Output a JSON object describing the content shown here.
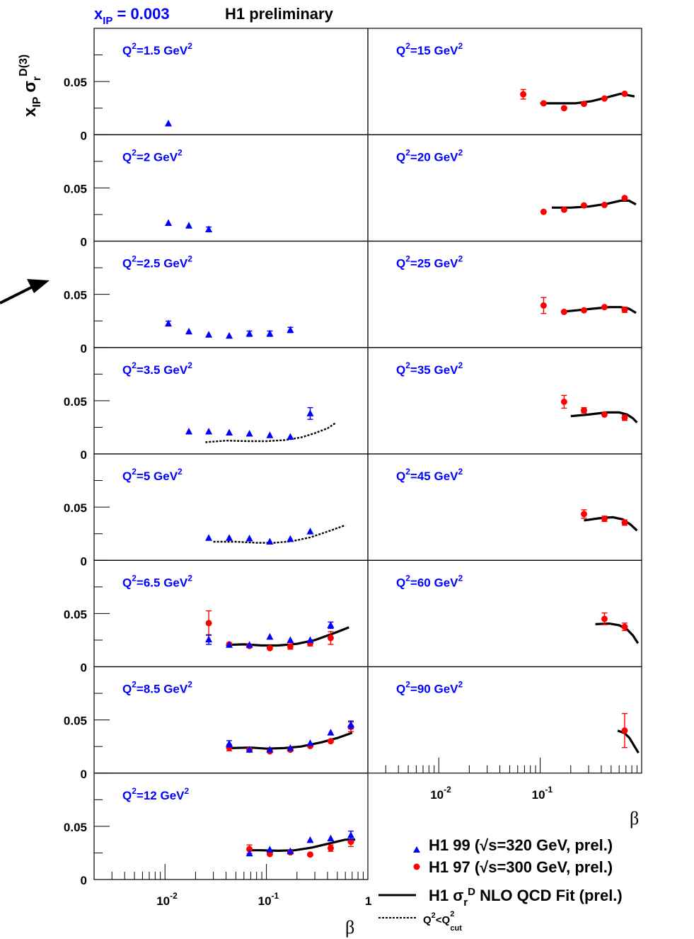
{
  "header": {
    "xip_label": "x",
    "xip_sub": "IP",
    "xip_value": " = 0.003",
    "status": "H1 preliminary"
  },
  "yaxis": {
    "label_x": "x",
    "label_sub_ip": "IP",
    "label_sigma": "σ",
    "label_sub_r": "r",
    "label_sup": "D(3)",
    "ticks": [
      "0",
      "0.05"
    ]
  },
  "xaxis": {
    "label": "β",
    "ticks": [
      {
        "base": "10",
        "exp": "-2",
        "value": 0.01
      },
      {
        "base": "10",
        "exp": "-1",
        "value": 0.1
      },
      {
        "base": "1",
        "exp": "",
        "value": 1
      }
    ]
  },
  "legend": {
    "h1_99": "H1 99 (√s=320 GeV, prel.)",
    "h1_97": "H1 97 (√s=300 GeV, prel.)",
    "fit_pre": "H1 σ",
    "fit_sub": "r",
    "fit_sup": "D",
    "fit_post": " NLO QCD Fit (prel.)",
    "cut_a": "Q",
    "cut_sup1": "2",
    "cut_mid": "<Q",
    "cut_sup2": "2",
    "cut_sub": "cut"
  },
  "colors": {
    "h1_99": "#0000ff",
    "h1_97": "#ff0000",
    "fit": "#000000",
    "panel_label": "#0000ff"
  },
  "chart_data": {
    "type": "scatter",
    "x_scale": "log",
    "xlim": [
      0.002,
      1
    ],
    "ylim": [
      0,
      0.1
    ],
    "xlabel": "β",
    "ylabel": "x_IP σ_r^D(3)",
    "panels": [
      {
        "label_pre": "Q",
        "label_post": "=1.5 GeV",
        "column": 0,
        "row": 0,
        "h1_99": [
          [
            0.0108,
            0.0105,
            0.0014
          ]
        ],
        "h1_97": [],
        "fit": [],
        "fit_cut": []
      },
      {
        "label_pre": "Q",
        "label_post": "=2 GeV",
        "column": 0,
        "row": 1,
        "h1_99": [
          [
            0.0108,
            0.017,
            0.001
          ],
          [
            0.0172,
            0.0145,
            0.0014
          ],
          [
            0.027,
            0.011,
            0.0023
          ]
        ],
        "h1_97": [],
        "fit": [],
        "fit_cut": []
      },
      {
        "label_pre": "Q",
        "label_post": "=2.5 GeV",
        "column": 0,
        "row": 2,
        "h1_99": [
          [
            0.0108,
            0.0225,
            0.0023
          ],
          [
            0.0172,
            0.015,
            0.001
          ],
          [
            0.027,
            0.012,
            0.001
          ],
          [
            0.043,
            0.011,
            0.001
          ],
          [
            0.068,
            0.013,
            0.0025
          ],
          [
            0.108,
            0.013,
            0.0025
          ],
          [
            0.172,
            0.0165,
            0.0025
          ]
        ],
        "h1_97": [],
        "fit": [],
        "fit_cut": []
      },
      {
        "label_pre": "Q",
        "label_post": "=3.5 GeV",
        "column": 0,
        "row": 3,
        "h1_99": [
          [
            0.0172,
            0.021,
            0.0008
          ],
          [
            0.027,
            0.021,
            0.0008
          ],
          [
            0.043,
            0.02,
            0.0008
          ],
          [
            0.068,
            0.019,
            0.0008
          ],
          [
            0.108,
            0.0175,
            0.0008
          ],
          [
            0.172,
            0.016,
            0.0008
          ],
          [
            0.27,
            0.038,
            0.0055
          ]
        ],
        "h1_97": [],
        "fit": [],
        "fit_cut": [
          [
            0.025,
            0.011
          ],
          [
            0.04,
            0.0125
          ],
          [
            0.065,
            0.012
          ],
          [
            0.1,
            0.012
          ],
          [
            0.15,
            0.013
          ],
          [
            0.22,
            0.0155
          ],
          [
            0.3,
            0.0195
          ],
          [
            0.4,
            0.024
          ],
          [
            0.48,
            0.029
          ]
        ]
      },
      {
        "label_pre": "Q",
        "label_post": "=5 GeV",
        "column": 0,
        "row": 4,
        "h1_99": [
          [
            0.027,
            0.021,
            0.0008
          ],
          [
            0.043,
            0.021,
            0.0008
          ],
          [
            0.068,
            0.0205,
            0.0008
          ],
          [
            0.108,
            0.0175,
            0.0008
          ],
          [
            0.172,
            0.02,
            0.0008
          ],
          [
            0.27,
            0.027,
            0.0008
          ]
        ],
        "h1_97": [],
        "fit": [],
        "fit_cut": [
          [
            0.03,
            0.0175
          ],
          [
            0.05,
            0.0175
          ],
          [
            0.08,
            0.0165
          ],
          [
            0.12,
            0.0165
          ],
          [
            0.18,
            0.018
          ],
          [
            0.27,
            0.0215
          ],
          [
            0.4,
            0.027
          ],
          [
            0.6,
            0.033
          ]
        ]
      },
      {
        "label_pre": "Q",
        "label_post": "=6.5 GeV",
        "column": 0,
        "row": 5,
        "h1_99": [
          [
            0.027,
            0.0255,
            0.0045
          ],
          [
            0.043,
            0.0205,
            0.0015
          ],
          [
            0.068,
            0.0205,
            0.0015
          ],
          [
            0.108,
            0.028,
            0.0015
          ],
          [
            0.172,
            0.025,
            0.0015
          ],
          [
            0.27,
            0.025,
            0.0015
          ],
          [
            0.43,
            0.039,
            0.003
          ]
        ],
        "h1_97": [
          [
            0.027,
            0.041,
            0.0115
          ],
          [
            0.043,
            0.021,
            0.0015
          ],
          [
            0.068,
            0.0195,
            0.0015
          ],
          [
            0.108,
            0.0175,
            0.0015
          ],
          [
            0.172,
            0.019,
            0.0025
          ],
          [
            0.27,
            0.022,
            0.0025
          ],
          [
            0.43,
            0.027,
            0.006
          ]
        ],
        "fit": [
          [
            0.04,
            0.0205
          ],
          [
            0.06,
            0.021
          ],
          [
            0.09,
            0.02
          ],
          [
            0.13,
            0.02
          ],
          [
            0.2,
            0.0215
          ],
          [
            0.3,
            0.025
          ],
          [
            0.45,
            0.031
          ],
          [
            0.65,
            0.037
          ]
        ],
        "fit_cut": []
      },
      {
        "label_pre": "Q",
        "label_post": "=8.5 GeV",
        "column": 0,
        "row": 6,
        "h1_99": [
          [
            0.043,
            0.0275,
            0.003
          ],
          [
            0.068,
            0.022,
            0.0015
          ],
          [
            0.108,
            0.022,
            0.0015
          ],
          [
            0.172,
            0.0235,
            0.0015
          ],
          [
            0.27,
            0.028,
            0.0015
          ],
          [
            0.43,
            0.038,
            0.0015
          ],
          [
            0.68,
            0.0455,
            0.0035
          ]
        ],
        "h1_97": [
          [
            0.043,
            0.024,
            0.003
          ],
          [
            0.068,
            0.022,
            0.0015
          ],
          [
            0.108,
            0.0205,
            0.0015
          ],
          [
            0.172,
            0.022,
            0.0015
          ],
          [
            0.27,
            0.0255,
            0.0015
          ],
          [
            0.43,
            0.03,
            0.0015
          ],
          [
            0.68,
            0.0435,
            0.0045
          ]
        ],
        "fit": [
          [
            0.045,
            0.0235
          ],
          [
            0.07,
            0.024
          ],
          [
            0.1,
            0.023
          ],
          [
            0.15,
            0.0235
          ],
          [
            0.22,
            0.025
          ],
          [
            0.35,
            0.029
          ],
          [
            0.5,
            0.033
          ],
          [
            0.7,
            0.038
          ]
        ],
        "fit_cut": []
      },
      {
        "label_pre": "Q",
        "label_post": "=12 GeV",
        "column": 0,
        "row": 7,
        "h1_99": [
          [
            0.068,
            0.0245,
            0.0015
          ],
          [
            0.108,
            0.028,
            0.0015
          ],
          [
            0.172,
            0.0265,
            0.0015
          ],
          [
            0.27,
            0.037,
            0.0015
          ],
          [
            0.43,
            0.0385,
            0.0015
          ],
          [
            0.68,
            0.0415,
            0.004
          ]
        ],
        "h1_97": [
          [
            0.068,
            0.0285,
            0.004
          ],
          [
            0.108,
            0.024,
            0.0015
          ],
          [
            0.172,
            0.0255,
            0.0015
          ],
          [
            0.27,
            0.0235,
            0.0015
          ],
          [
            0.43,
            0.0295,
            0.003
          ],
          [
            0.68,
            0.0355,
            0.0045
          ]
        ],
        "fit": [
          [
            0.065,
            0.0275
          ],
          [
            0.09,
            0.0275
          ],
          [
            0.13,
            0.027
          ],
          [
            0.19,
            0.0275
          ],
          [
            0.28,
            0.03
          ],
          [
            0.42,
            0.034
          ],
          [
            0.6,
            0.0375
          ],
          [
            0.75,
            0.0375
          ]
        ],
        "fit_cut": []
      },
      {
        "label_pre": "Q",
        "label_post": "=15 GeV",
        "column": 1,
        "row": 0,
        "h1_99": [],
        "h1_97": [
          [
            0.068,
            0.038,
            0.0045
          ],
          [
            0.108,
            0.0295,
            0.0015
          ],
          [
            0.172,
            0.025,
            0.0015
          ],
          [
            0.27,
            0.029,
            0.0015
          ],
          [
            0.43,
            0.034,
            0.0015
          ],
          [
            0.68,
            0.0385,
            0.0015
          ]
        ],
        "fit": [
          [
            0.1,
            0.0295
          ],
          [
            0.15,
            0.0295
          ],
          [
            0.22,
            0.0295
          ],
          [
            0.32,
            0.0315
          ],
          [
            0.45,
            0.035
          ],
          [
            0.62,
            0.0385
          ],
          [
            0.85,
            0.036
          ]
        ],
        "fit_cut": []
      },
      {
        "label_pre": "Q",
        "label_post": "=20 GeV",
        "column": 1,
        "row": 1,
        "h1_99": [],
        "h1_97": [
          [
            0.108,
            0.0275,
            0.0015
          ],
          [
            0.172,
            0.0295,
            0.0015
          ],
          [
            0.27,
            0.0335,
            0.0015
          ],
          [
            0.43,
            0.034,
            0.0015
          ],
          [
            0.68,
            0.0405,
            0.0015
          ]
        ],
        "fit": [
          [
            0.13,
            0.0315
          ],
          [
            0.2,
            0.0315
          ],
          [
            0.3,
            0.0325
          ],
          [
            0.45,
            0.035
          ],
          [
            0.62,
            0.038
          ],
          [
            0.75,
            0.038
          ],
          [
            0.88,
            0.0345
          ]
        ],
        "fit_cut": []
      },
      {
        "label_pre": "Q",
        "label_post": "=25 GeV",
        "column": 1,
        "row": 2,
        "h1_99": [],
        "h1_97": [
          [
            0.108,
            0.0395,
            0.0075
          ],
          [
            0.172,
            0.0335,
            0.0015
          ],
          [
            0.27,
            0.035,
            0.0015
          ],
          [
            0.43,
            0.038,
            0.0015
          ],
          [
            0.68,
            0.0355,
            0.0025
          ]
        ],
        "fit": [
          [
            0.16,
            0.0335
          ],
          [
            0.23,
            0.035
          ],
          [
            0.33,
            0.0365
          ],
          [
            0.48,
            0.038
          ],
          [
            0.62,
            0.038
          ],
          [
            0.75,
            0.0365
          ],
          [
            0.88,
            0.0325
          ]
        ],
        "fit_cut": []
      },
      {
        "label_pre": "Q",
        "label_post": "=35 GeV",
        "column": 1,
        "row": 3,
        "h1_99": [],
        "h1_97": [
          [
            0.172,
            0.049,
            0.006
          ],
          [
            0.27,
            0.041,
            0.0025
          ],
          [
            0.43,
            0.037,
            0.0015
          ],
          [
            0.68,
            0.034,
            0.0025
          ]
        ],
        "fit": [
          [
            0.2,
            0.0355
          ],
          [
            0.3,
            0.037
          ],
          [
            0.45,
            0.039
          ],
          [
            0.6,
            0.039
          ],
          [
            0.72,
            0.037
          ],
          [
            0.82,
            0.0335
          ],
          [
            0.9,
            0.0295
          ]
        ],
        "fit_cut": []
      },
      {
        "label_pre": "Q",
        "label_post": "=45 GeV",
        "column": 1,
        "row": 4,
        "h1_99": [],
        "h1_97": [
          [
            0.27,
            0.0435,
            0.004
          ],
          [
            0.43,
            0.039,
            0.0025
          ],
          [
            0.68,
            0.0355,
            0.0025
          ]
        ],
        "fit": [
          [
            0.27,
            0.0375
          ],
          [
            0.38,
            0.0395
          ],
          [
            0.52,
            0.0405
          ],
          [
            0.65,
            0.0385
          ],
          [
            0.78,
            0.0335
          ],
          [
            0.9,
            0.028
          ]
        ],
        "fit_cut": []
      },
      {
        "label_pre": "Q",
        "label_post": "=60 GeV",
        "column": 1,
        "row": 5,
        "h1_99": [],
        "h1_97": [
          [
            0.43,
            0.045,
            0.0055
          ],
          [
            0.68,
            0.0375,
            0.0035
          ]
        ],
        "fit": [
          [
            0.35,
            0.04
          ],
          [
            0.48,
            0.0405
          ],
          [
            0.6,
            0.039
          ],
          [
            0.72,
            0.035
          ],
          [
            0.82,
            0.0295
          ],
          [
            0.92,
            0.022
          ]
        ],
        "fit_cut": []
      },
      {
        "label_pre": "Q",
        "label_post": "=90 GeV",
        "column": 1,
        "row": 6,
        "h1_99": [],
        "h1_97": [
          [
            0.68,
            0.04,
            0.016
          ]
        ],
        "fit": [
          [
            0.58,
            0.04
          ],
          [
            0.68,
            0.0375
          ],
          [
            0.76,
            0.033
          ],
          [
            0.84,
            0.026
          ],
          [
            0.93,
            0.019
          ]
        ],
        "fit_cut": []
      }
    ]
  }
}
